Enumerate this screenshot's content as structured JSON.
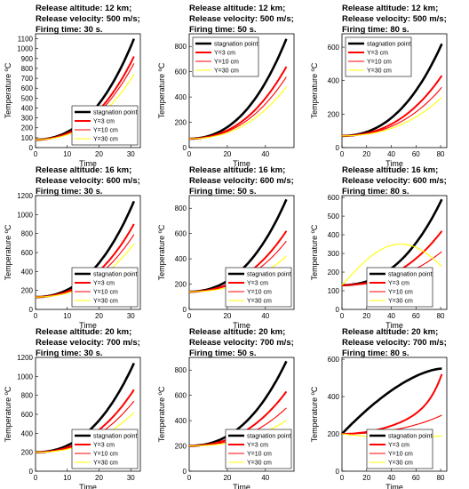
{
  "legend_entries": [
    "stagnation point",
    "Y=3 cm",
    "Y=10 cm",
    "Y=30 cm"
  ],
  "series_colors": {
    "stagnation point": "#000000",
    "Y=3 cm": "#ff0000",
    "Y=10 cm": "#ff0000",
    "Y=30 cm": "#ffff00"
  },
  "chart_data": [
    {
      "type": "line",
      "title": [
        "Release altitude: 12 km;",
        "Release velocity: 500 m/s;",
        "Firing time: 30 s."
      ],
      "xlabel": "Time",
      "ylabel": "Temperature ºC",
      "xlim": [
        0,
        33
      ],
      "ylim": [
        0,
        1150
      ],
      "xticks": [
        0,
        10,
        20,
        30
      ],
      "yticks": [
        0,
        100,
        200,
        300,
        400,
        500,
        600,
        700,
        800,
        900,
        1000,
        1100
      ],
      "xmax": 31,
      "legend_position": "lower-right",
      "series": [
        {
          "name": "stagnation point",
          "start": 80,
          "end": 1100
        },
        {
          "name": "Y=3 cm",
          "start": 80,
          "end": 920
        },
        {
          "name": "Y=10 cm",
          "start": 80,
          "end": 850
        },
        {
          "name": "Y=30 cm",
          "start": 80,
          "end": 740
        }
      ]
    },
    {
      "type": "line",
      "title": [
        "Release altitude: 12 km;",
        "Release velocity: 500 m/s;",
        "Firing time: 50 s."
      ],
      "xlabel": "Time",
      "ylabel": "Temperature ºC",
      "xlim": [
        0,
        55
      ],
      "ylim": [
        0,
        900
      ],
      "xticks": [
        0,
        20,
        40
      ],
      "yticks": [
        0,
        200,
        400,
        600,
        800
      ],
      "xmax": 51,
      "legend_position": "top-left",
      "series": [
        {
          "name": "stagnation point",
          "start": 70,
          "end": 860
        },
        {
          "name": "Y=3 cm",
          "start": 70,
          "end": 640
        },
        {
          "name": "Y=10 cm",
          "start": 70,
          "end": 560
        },
        {
          "name": "Y=30 cm",
          "start": 70,
          "end": 480
        }
      ]
    },
    {
      "type": "line",
      "title": [
        "Release altitude: 12 km;",
        "Release velocity: 500 m/s;",
        "Firing time: 80 s."
      ],
      "xlabel": "Time",
      "ylabel": "Temperature ºC",
      "xlim": [
        0,
        85
      ],
      "ylim": [
        0,
        680
      ],
      "xticks": [
        0,
        20,
        40,
        60,
        80
      ],
      "yticks": [
        0,
        200,
        400,
        600
      ],
      "xmax": 81,
      "legend_position": "top-left",
      "series": [
        {
          "name": "stagnation point",
          "start": 70,
          "end": 620
        },
        {
          "name": "Y=3 cm",
          "start": 70,
          "end": 430
        },
        {
          "name": "Y=10 cm",
          "start": 70,
          "end": 360
        },
        {
          "name": "Y=30 cm",
          "start": 70,
          "end": 300
        }
      ]
    },
    {
      "type": "line",
      "title": [
        "Release altitude: 16 km;",
        "Release velocity: 600 m/s;",
        "Firing time: 30 s."
      ],
      "xlabel": "Time",
      "ylabel": "Temperature ºC",
      "xlim": [
        0,
        33
      ],
      "ylim": [
        0,
        1200
      ],
      "xticks": [
        0,
        10,
        20,
        30
      ],
      "yticks": [
        0,
        200,
        400,
        600,
        800,
        1000,
        1200
      ],
      "xmax": 31,
      "legend_position": "lower-right",
      "series": [
        {
          "name": "stagnation point",
          "start": 130,
          "end": 1140
        },
        {
          "name": "Y=3 cm",
          "start": 130,
          "end": 900
        },
        {
          "name": "Y=10 cm",
          "start": 130,
          "end": 790
        },
        {
          "name": "Y=30 cm",
          "start": 130,
          "end": 690
        }
      ]
    },
    {
      "type": "line",
      "title": [
        "Release altitude: 16 km;",
        "Release velocity: 600 m/s;",
        "Firing time: 50 s."
      ],
      "xlabel": "Time",
      "ylabel": "Temperature ºC",
      "xlim": [
        0,
        55
      ],
      "ylim": [
        0,
        900
      ],
      "xticks": [
        0,
        20,
        40
      ],
      "yticks": [
        0,
        200,
        400,
        600,
        800
      ],
      "xmax": 51,
      "legend_position": "lower-right",
      "series": [
        {
          "name": "stagnation point",
          "start": 140,
          "end": 870
        },
        {
          "name": "Y=3 cm",
          "start": 140,
          "end": 620
        },
        {
          "name": "Y=10 cm",
          "start": 140,
          "end": 540
        },
        {
          "name": "Y=30 cm",
          "start": 140,
          "end": 420
        }
      ]
    },
    {
      "type": "line",
      "title": [
        "Release altitude: 16 km;",
        "Release velocity: 600 m/s;",
        "Firing time: 80 s."
      ],
      "xlabel": "Time",
      "ylabel": "Temperature ºC",
      "xlim": [
        0,
        85
      ],
      "ylim": [
        0,
        610
      ],
      "xticks": [
        0,
        20,
        40,
        60,
        80
      ],
      "yticks": [
        0,
        100,
        200,
        300,
        400,
        500,
        600
      ],
      "xmax": 81,
      "legend_position": "bottom-center",
      "series": [
        {
          "name": "stagnation point",
          "start": 130,
          "end": 590
        },
        {
          "name": "Y=3 cm",
          "start": 130,
          "end": 420
        },
        {
          "name": "Y=10 cm",
          "start": 130,
          "end": 310
        },
        {
          "name": "Y=30 cm",
          "start": 130,
          "end": 230
        }
      ]
    },
    {
      "type": "line",
      "title": [
        "Release altitude: 20 km;",
        "Release velocity: 700 m/s;",
        "Firing time: 30 s."
      ],
      "xlabel": "Time",
      "ylabel": "Temperature ºC",
      "xlim": [
        0,
        33
      ],
      "ylim": [
        0,
        1200
      ],
      "xticks": [
        0,
        10,
        20,
        30
      ],
      "yticks": [
        0,
        200,
        400,
        600,
        800,
        1000,
        1200
      ],
      "xmax": 31,
      "legend_position": "lower-right",
      "series": [
        {
          "name": "stagnation point",
          "start": 200,
          "end": 1140
        },
        {
          "name": "Y=3 cm",
          "start": 200,
          "end": 860
        },
        {
          "name": "Y=10 cm",
          "start": 200,
          "end": 740
        },
        {
          "name": "Y=30 cm",
          "start": 200,
          "end": 620
        }
      ]
    },
    {
      "type": "line",
      "title": [
        "Release altitude: 20 km;",
        "Release velocity: 700 m/s;",
        "Firing time: 50 s."
      ],
      "xlabel": "Time",
      "ylabel": "Temperature ºC",
      "xlim": [
        0,
        55
      ],
      "ylim": [
        0,
        900
      ],
      "xticks": [
        0,
        20,
        40
      ],
      "yticks": [
        0,
        200,
        400,
        600,
        800
      ],
      "xmax": 51,
      "legend_position": "bottom-right",
      "series": [
        {
          "name": "stagnation point",
          "start": 200,
          "end": 870
        },
        {
          "name": "Y=3 cm",
          "start": 200,
          "end": 630
        },
        {
          "name": "Y=10 cm",
          "start": 200,
          "end": 500
        },
        {
          "name": "Y=30 cm",
          "start": 200,
          "end": 400
        }
      ]
    },
    {
      "type": "line",
      "title": [
        "Release altitude: 20 km;",
        "Release velocity: 700 m/s;",
        "Firing time: 80 s."
      ],
      "xlabel": "Time",
      "ylabel": "Temperature ºC",
      "xlim": [
        0,
        85
      ],
      "ylim": [
        0,
        610
      ],
      "xticks": [
        0,
        20,
        40,
        60,
        80
      ],
      "yticks": [
        0,
        200,
        400,
        600
      ],
      "xmax": 81,
      "legend_position": "bottom-center",
      "series": [
        {
          "name": "stagnation point",
          "start": 200,
          "end": 550
        },
        {
          "name": "Y=3 cm",
          "start": 200,
          "end": 520
        },
        {
          "name": "Y=10 cm",
          "start": 200,
          "end": 300
        },
        {
          "name": "Y=30 cm",
          "start": 200,
          "end": 190
        }
      ]
    }
  ]
}
